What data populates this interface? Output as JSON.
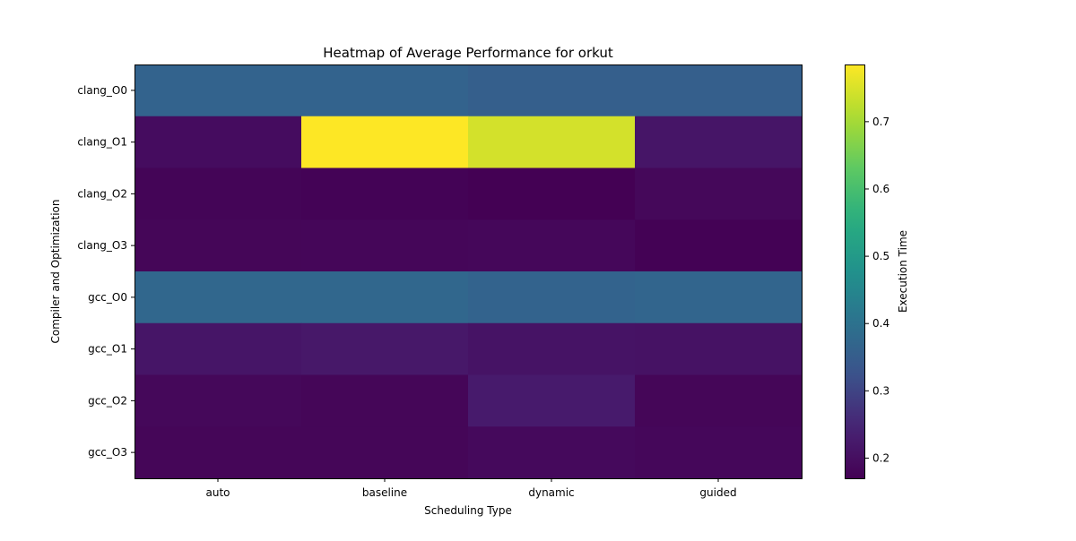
{
  "chart_data": {
    "type": "heatmap",
    "title": "Heatmap of Average Performance for orkut",
    "xlabel": "Scheduling Type",
    "ylabel": "Compiler and Optimization",
    "colorbar_label": "Execution Time",
    "colormap": "viridis",
    "x_categories": [
      "auto",
      "baseline",
      "dynamic",
      "guided"
    ],
    "y_categories": [
      "clang_O0",
      "clang_O1",
      "clang_O2",
      "clang_O3",
      "gcc_O0",
      "gcc_O1",
      "gcc_O2",
      "gcc_O3"
    ],
    "values": [
      [
        0.365,
        0.365,
        0.355,
        0.355
      ],
      [
        0.195,
        0.785,
        0.745,
        0.215
      ],
      [
        0.178,
        0.175,
        0.17,
        0.185
      ],
      [
        0.18,
        0.182,
        0.183,
        0.172
      ],
      [
        0.375,
        0.375,
        0.365,
        0.37
      ],
      [
        0.215,
        0.22,
        0.21,
        0.208
      ],
      [
        0.185,
        0.18,
        0.225,
        0.18
      ],
      [
        0.18,
        0.18,
        0.188,
        0.183
      ]
    ],
    "vmin": 0.17,
    "vmax": 0.785,
    "colorbar_ticks": [
      0.2,
      0.3,
      0.4,
      0.5,
      0.6,
      0.7
    ]
  }
}
